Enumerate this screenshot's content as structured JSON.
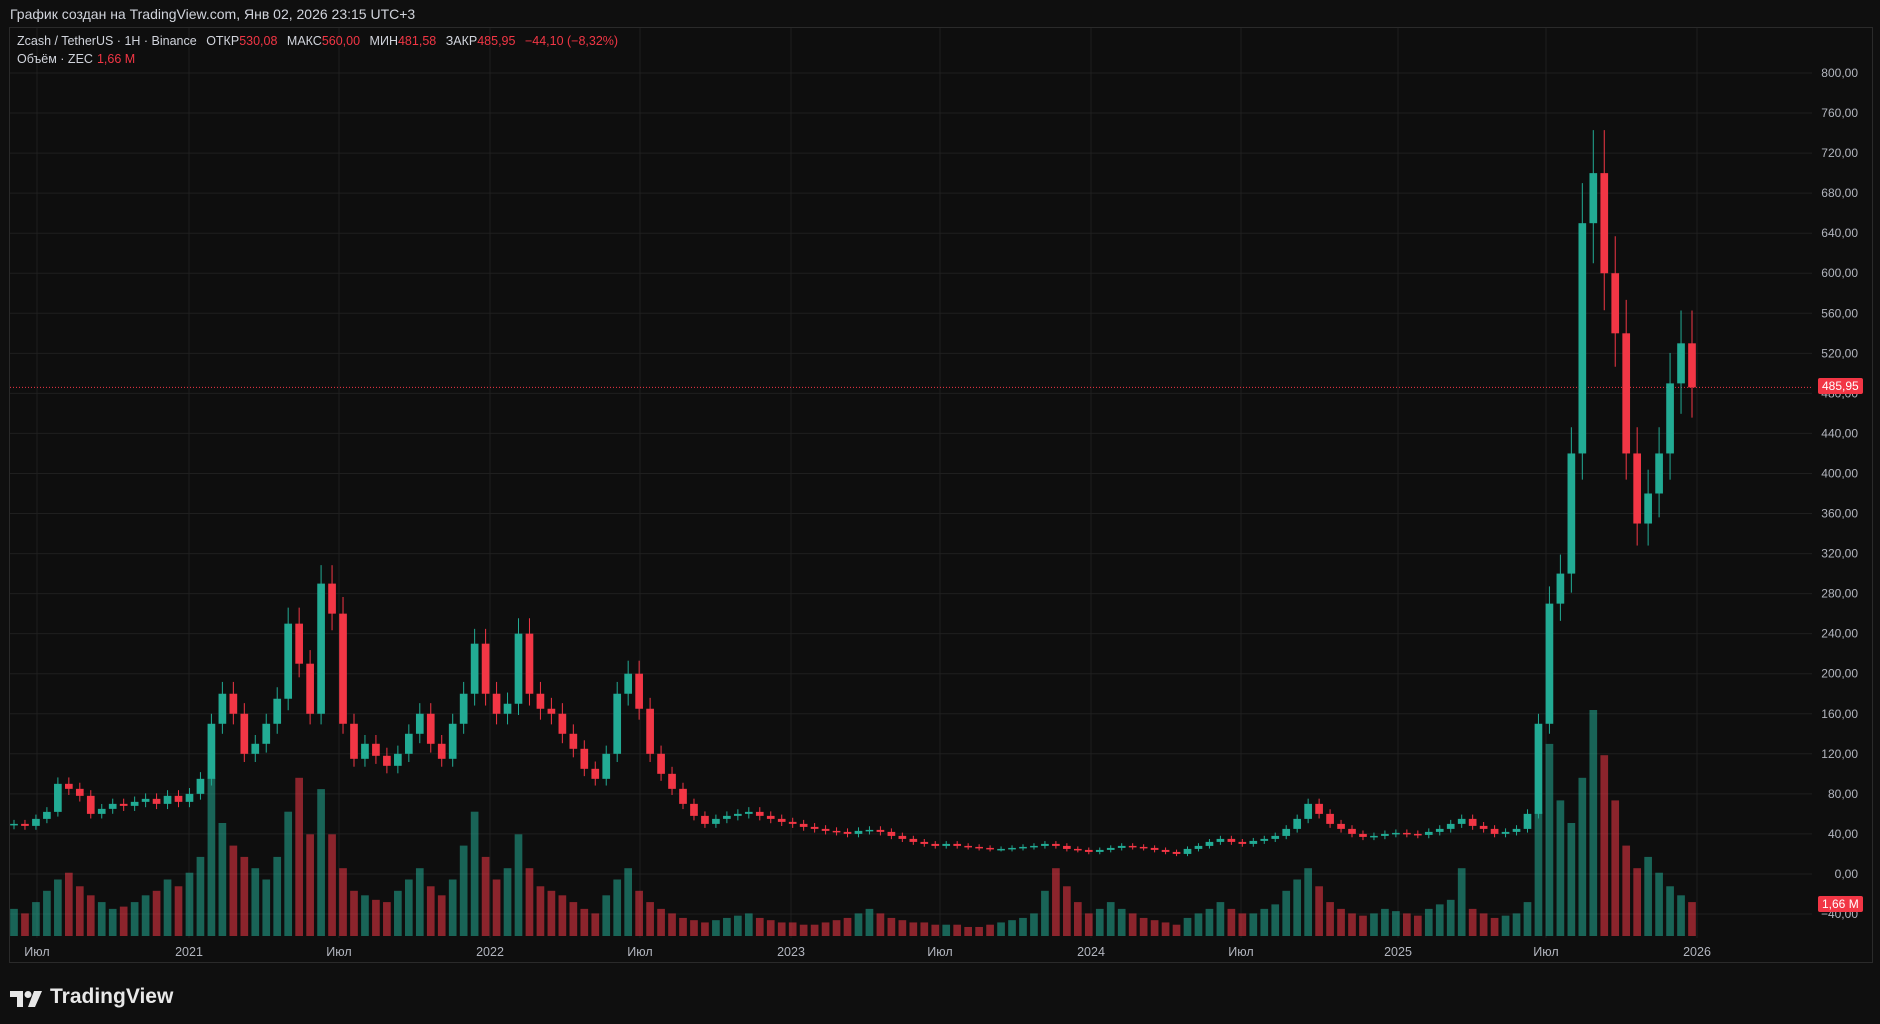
{
  "caption": "График создан на TradingView.com, Янв 02, 2026 23:15 UTC+3",
  "legend": {
    "symbol": "Zcash / TetherUS · 1H · Binance",
    "open_label": "ОТКР",
    "open_value": "530,08",
    "high_label": "МАКС",
    "high_value": "560,00",
    "low_label": "МИН",
    "low_value": "481,58",
    "close_label": "ЗАКР",
    "close_value": "485,95",
    "change": "−44,10 (−8,32%)",
    "volume_label": "Объём · ZEC",
    "volume_value": "1,66 M"
  },
  "price_tag": "485,95",
  "volume_tag": "1,66 M",
  "brand": "TradingView",
  "colors": {
    "up": "#22ab94",
    "down": "#f23645",
    "background": "#0f0f0f",
    "grid": "#1f1f1f",
    "axis_text": "#b2b5be"
  },
  "chart_data": {
    "type": "candlestick",
    "x_ticks": [
      "Июл",
      "2021",
      "Июл",
      "2022",
      "Июл",
      "2023",
      "Июл",
      "2024",
      "Июл",
      "2025",
      "Июл",
      "2026"
    ],
    "y_ticks": [
      "800,00",
      "760,00",
      "720,00",
      "680,00",
      "640,00",
      "600,00",
      "560,00",
      "520,00",
      "480,00",
      "440,00",
      "400,00",
      "360,00",
      "320,00",
      "280,00",
      "240,00",
      "200,00",
      "160,00",
      "120,00",
      "80,00",
      "40,00",
      "0,00",
      "−40,00"
    ],
    "ylim": [
      -44,
      806
    ],
    "last_price": 485.95,
    "closes": [
      50,
      48,
      55,
      62,
      90,
      85,
      78,
      60,
      65,
      70,
      68,
      72,
      75,
      70,
      78,
      72,
      80,
      95,
      150,
      180,
      160,
      120,
      130,
      150,
      175,
      250,
      210,
      160,
      290,
      260,
      150,
      115,
      130,
      118,
      108,
      120,
      140,
      160,
      130,
      115,
      150,
      180,
      230,
      180,
      160,
      170,
      240,
      180,
      165,
      160,
      140,
      125,
      105,
      95,
      120,
      180,
      200,
      165,
      120,
      100,
      85,
      70,
      58,
      50,
      55,
      58,
      60,
      62,
      58,
      55,
      52,
      50,
      47,
      45,
      43,
      42,
      40,
      43,
      44,
      42,
      38,
      35,
      32,
      30,
      28,
      30,
      28,
      27,
      26,
      25,
      25,
      26,
      27,
      28,
      30,
      28,
      25,
      24,
      22,
      24,
      26,
      28,
      27,
      26,
      24,
      22,
      20,
      25,
      28,
      32,
      35,
      32,
      30,
      33,
      35,
      38,
      45,
      55,
      70,
      60,
      50,
      45,
      40,
      37,
      38,
      40,
      41,
      40,
      39,
      42,
      45,
      50,
      55,
      48,
      45,
      40,
      42,
      45,
      60,
      150,
      270,
      300,
      420,
      650,
      700,
      600,
      540,
      420,
      350,
      380,
      420,
      490,
      530,
      486
    ],
    "volumes": [
      0.12,
      0.1,
      0.15,
      0.2,
      0.25,
      0.28,
      0.22,
      0.18,
      0.15,
      0.12,
      0.13,
      0.15,
      0.18,
      0.2,
      0.25,
      0.22,
      0.28,
      0.35,
      0.7,
      0.5,
      0.4,
      0.35,
      0.3,
      0.25,
      0.35,
      0.55,
      0.7,
      0.45,
      0.65,
      0.45,
      0.3,
      0.2,
      0.18,
      0.16,
      0.15,
      0.2,
      0.25,
      0.3,
      0.22,
      0.18,
      0.25,
      0.4,
      0.55,
      0.35,
      0.25,
      0.3,
      0.45,
      0.3,
      0.22,
      0.2,
      0.18,
      0.15,
      0.12,
      0.1,
      0.18,
      0.25,
      0.3,
      0.2,
      0.15,
      0.12,
      0.1,
      0.08,
      0.07,
      0.06,
      0.07,
      0.08,
      0.09,
      0.1,
      0.08,
      0.07,
      0.06,
      0.06,
      0.05,
      0.05,
      0.06,
      0.07,
      0.08,
      0.1,
      0.12,
      0.1,
      0.08,
      0.07,
      0.06,
      0.06,
      0.05,
      0.05,
      0.05,
      0.04,
      0.04,
      0.05,
      0.06,
      0.07,
      0.08,
      0.1,
      0.2,
      0.3,
      0.22,
      0.15,
      0.1,
      0.12,
      0.15,
      0.12,
      0.1,
      0.08,
      0.07,
      0.06,
      0.05,
      0.08,
      0.1,
      0.12,
      0.15,
      0.12,
      0.1,
      0.1,
      0.12,
      0.14,
      0.2,
      0.25,
      0.3,
      0.22,
      0.15,
      0.12,
      0.1,
      0.09,
      0.1,
      0.12,
      0.11,
      0.1,
      0.09,
      0.12,
      0.14,
      0.16,
      0.3,
      0.12,
      0.1,
      0.08,
      0.09,
      0.1,
      0.15,
      0.55,
      0.85,
      0.6,
      0.5,
      0.7,
      1.0,
      0.8,
      0.6,
      0.4,
      0.3,
      0.35,
      0.28,
      0.22,
      0.18,
      0.15
    ]
  }
}
